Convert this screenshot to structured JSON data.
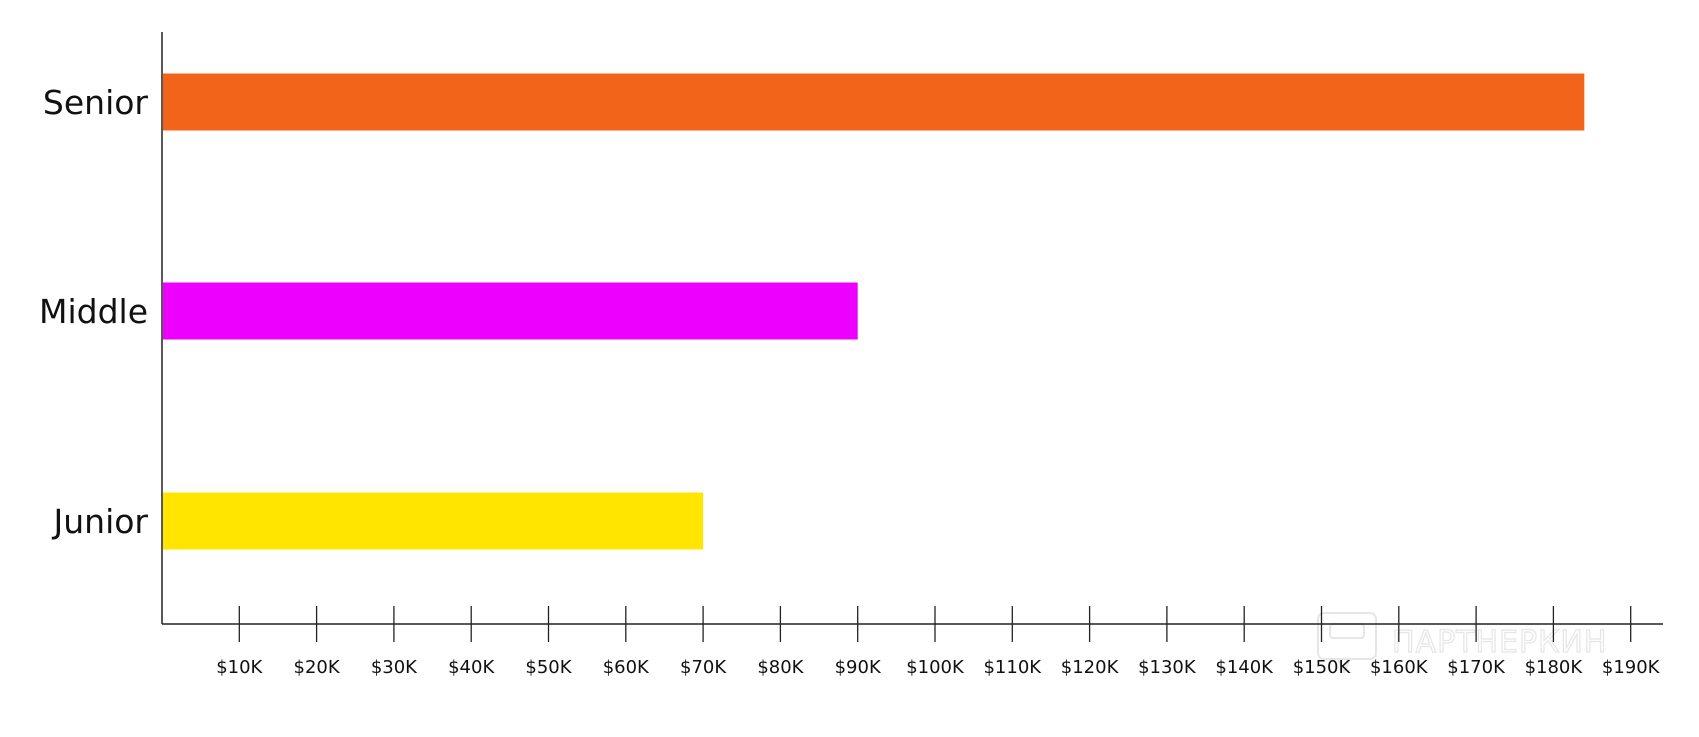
{
  "chart_data": {
    "type": "bar",
    "orientation": "horizontal",
    "categories": [
      "Senior",
      "Middle",
      "Junior"
    ],
    "values": [
      184000,
      90000,
      70000
    ],
    "colors": [
      "#F26419",
      "#EE00FF",
      "#FFE500"
    ],
    "x_ticks": [
      10000,
      20000,
      30000,
      40000,
      50000,
      60000,
      70000,
      80000,
      90000,
      100000,
      110000,
      120000,
      130000,
      140000,
      150000,
      160000,
      170000,
      180000,
      190000
    ],
    "x_tick_labels": [
      "$10K",
      "$20K",
      "$30K",
      "$40K",
      "$50K",
      "$60K",
      "$70K",
      "$80K",
      "$90K",
      "$100K",
      "$110K",
      "$120K",
      "$130K",
      "$140K",
      "$150K",
      "$160K",
      "$170K",
      "$180K",
      "$190K"
    ],
    "xlim": [
      0,
      194000
    ],
    "title": "",
    "xlabel": "",
    "ylabel": "",
    "grid": false,
    "legend": "none"
  },
  "watermark": {
    "text": "ПАРТНЕРКИН"
  }
}
